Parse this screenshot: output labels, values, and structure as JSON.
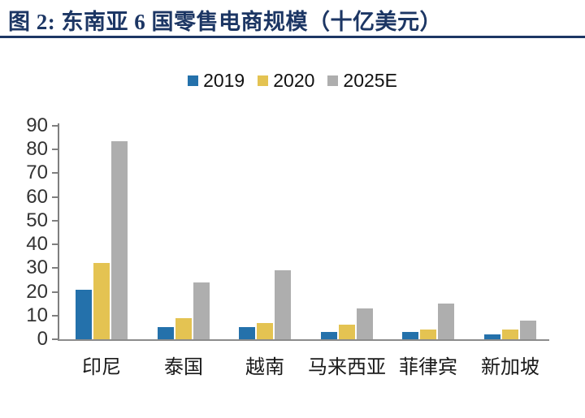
{
  "header": {
    "title": "图 2:  东南亚 6 国零售电商规模（十亿美元）"
  },
  "colors": {
    "title_navy": "#1C3664",
    "axis_line": "#7F7F7F",
    "tick_label": "#333333",
    "category_label": "#1A1A1A",
    "legend_text": "#111111",
    "background": "#FFFFFF"
  },
  "chart_data": {
    "type": "bar",
    "title": "东南亚6国零售电商规模（十亿美元）",
    "unit": "十亿美元",
    "categories": [
      "印尼",
      "泰国",
      "越南",
      "马来西亚",
      "菲律宾",
      "新加坡"
    ],
    "series": [
      {
        "name": "2019",
        "color": "#2471AB",
        "values": [
          21,
          5,
          5,
          3,
          3,
          2
        ]
      },
      {
        "name": "2020",
        "color": "#E4C352",
        "values": [
          32,
          9,
          7,
          6,
          4,
          4
        ]
      },
      {
        "name": "2025E",
        "color": "#AEAEAE",
        "values": [
          83.5,
          24,
          29,
          13,
          15,
          8
        ]
      }
    ],
    "ylim": [
      0,
      90
    ],
    "ytick_step": 10,
    "grid": false,
    "legend_position": "top-center"
  }
}
